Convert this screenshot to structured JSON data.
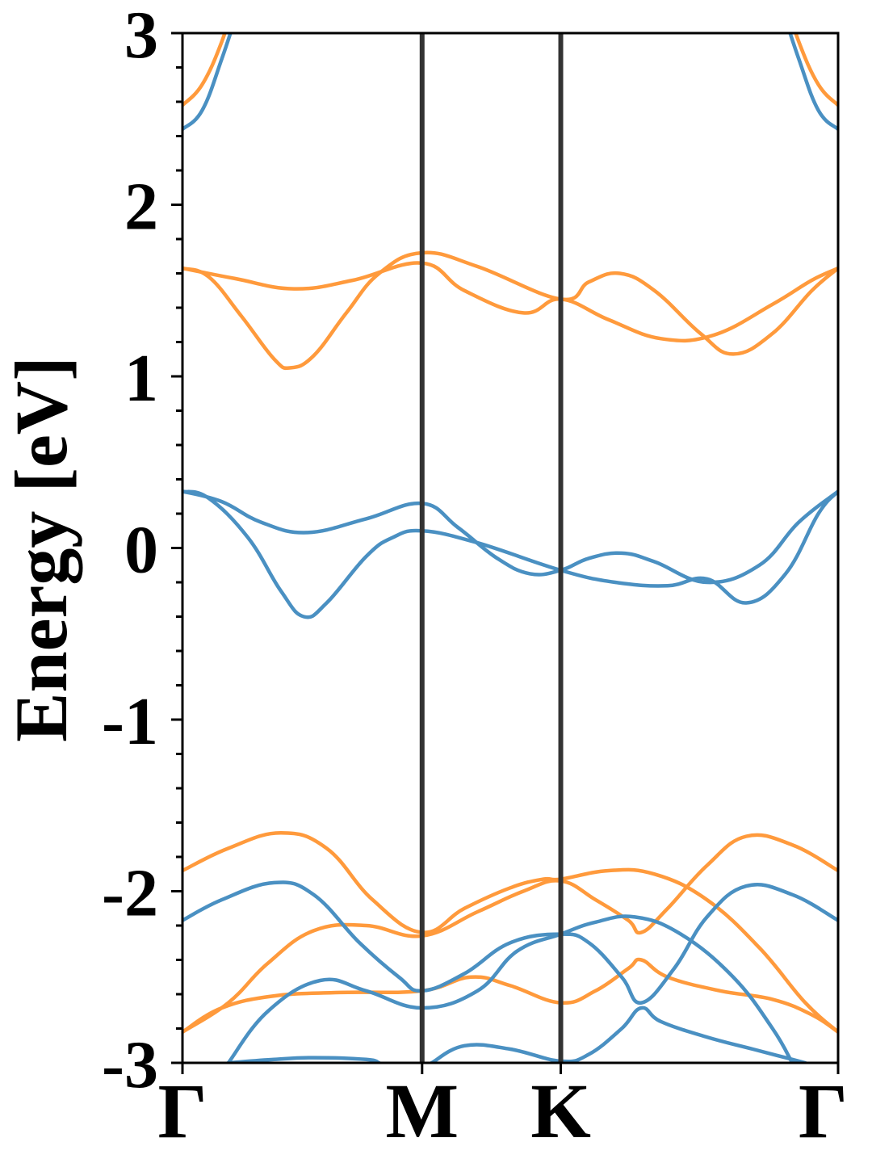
{
  "chart_data": {
    "type": "line",
    "title": "",
    "xlabel": "",
    "ylabel": "Energy [eV]",
    "ylim": [
      -3,
      3
    ],
    "xlim": [
      0,
      1
    ],
    "yticks": [
      -3,
      -2,
      -1,
      0,
      1,
      2,
      3
    ],
    "ytick_labels": [
      "-3",
      "-2",
      "-1",
      "0",
      "1",
      "2",
      "3"
    ],
    "high_symmetry_points": [
      {
        "label": "Γ",
        "x": 0.0
      },
      {
        "label": "M",
        "x": 0.3655
      },
      {
        "label": "K",
        "x": 0.577
      },
      {
        "label": "Γ",
        "x": 1.0
      }
    ],
    "grid": false,
    "legend": "none",
    "colors": {
      "spin_a": "#4a90c2",
      "spin_b": "#ff9a3c",
      "symmetry_line": "#333333"
    },
    "series": [
      {
        "color": "spin_b",
        "values": [
          [
            0,
            1.63
          ],
          [
            0.04,
            1.58
          ],
          [
            0.09,
            1.35
          ],
          [
            0.14,
            1.1
          ],
          [
            0.165,
            1.05
          ],
          [
            0.2,
            1.12
          ],
          [
            0.25,
            1.37
          ],
          [
            0.3,
            1.6
          ],
          [
            0.3655,
            1.72
          ],
          [
            0.45,
            1.64
          ],
          [
            0.577,
            1.45
          ],
          [
            0.62,
            1.55
          ],
          [
            0.667,
            1.6
          ],
          [
            0.72,
            1.5
          ],
          [
            0.79,
            1.25
          ],
          [
            0.84,
            1.13
          ],
          [
            0.9,
            1.25
          ],
          [
            0.96,
            1.5
          ],
          [
            1.0,
            1.63
          ]
        ]
      },
      {
        "color": "spin_b",
        "values": [
          [
            0,
            1.63
          ],
          [
            0.08,
            1.57
          ],
          [
            0.17,
            1.51
          ],
          [
            0.26,
            1.56
          ],
          [
            0.3655,
            1.66
          ],
          [
            0.43,
            1.5
          ],
          [
            0.52,
            1.37
          ],
          [
            0.577,
            1.45
          ],
          [
            0.65,
            1.33
          ],
          [
            0.73,
            1.22
          ],
          [
            0.81,
            1.24
          ],
          [
            0.9,
            1.42
          ],
          [
            0.96,
            1.56
          ],
          [
            1.0,
            1.63
          ]
        ]
      },
      {
        "color": "spin_a",
        "values": [
          [
            0,
            0.33
          ],
          [
            0.04,
            0.29
          ],
          [
            0.1,
            0.06
          ],
          [
            0.15,
            -0.25
          ],
          [
            0.185,
            -0.4
          ],
          [
            0.22,
            -0.32
          ],
          [
            0.28,
            -0.05
          ],
          [
            0.32,
            0.06
          ],
          [
            0.3655,
            0.1
          ],
          [
            0.45,
            0.03
          ],
          [
            0.577,
            -0.13
          ],
          [
            0.66,
            -0.2
          ],
          [
            0.74,
            -0.22
          ],
          [
            0.8,
            -0.18
          ],
          [
            0.86,
            -0.32
          ],
          [
            0.92,
            -0.15
          ],
          [
            0.97,
            0.2
          ],
          [
            1.0,
            0.33
          ]
        ]
      },
      {
        "color": "spin_a",
        "values": [
          [
            0,
            0.33
          ],
          [
            0.06,
            0.27
          ],
          [
            0.12,
            0.15
          ],
          [
            0.19,
            0.09
          ],
          [
            0.28,
            0.17
          ],
          [
            0.3655,
            0.26
          ],
          [
            0.42,
            0.12
          ],
          [
            0.48,
            -0.06
          ],
          [
            0.53,
            -0.15
          ],
          [
            0.577,
            -0.13
          ],
          [
            0.62,
            -0.06
          ],
          [
            0.67,
            -0.03
          ],
          [
            0.72,
            -0.08
          ],
          [
            0.8,
            -0.2
          ],
          [
            0.88,
            -0.1
          ],
          [
            0.94,
            0.15
          ],
          [
            1.0,
            0.33
          ]
        ]
      },
      {
        "color": "spin_b",
        "values": [
          [
            0,
            2.58
          ],
          [
            0.03,
            2.7
          ],
          [
            0.06,
            2.95
          ],
          [
            0.08,
            3.2
          ]
        ]
      },
      {
        "color": "spin_a",
        "values": [
          [
            0,
            2.44
          ],
          [
            0.03,
            2.55
          ],
          [
            0.06,
            2.85
          ],
          [
            0.09,
            3.2
          ]
        ]
      },
      {
        "color": "spin_b",
        "values": [
          [
            1.0,
            2.58
          ],
          [
            0.97,
            2.7
          ],
          [
            0.94,
            2.95
          ],
          [
            0.92,
            3.2
          ]
        ]
      },
      {
        "color": "spin_a",
        "values": [
          [
            1.0,
            2.44
          ],
          [
            0.97,
            2.55
          ],
          [
            0.94,
            2.85
          ],
          [
            0.91,
            3.2
          ]
        ]
      },
      {
        "color": "spin_b",
        "values": [
          [
            0,
            -1.88
          ],
          [
            0.07,
            -1.75
          ],
          [
            0.15,
            -1.66
          ],
          [
            0.22,
            -1.75
          ],
          [
            0.29,
            -2.05
          ],
          [
            0.3655,
            -2.24
          ],
          [
            0.43,
            -2.1
          ],
          [
            0.5,
            -1.98
          ],
          [
            0.55,
            -1.93
          ],
          [
            0.577,
            -1.93
          ],
          [
            0.65,
            -1.88
          ],
          [
            0.72,
            -1.9
          ],
          [
            0.8,
            -2.05
          ],
          [
            0.88,
            -2.33
          ],
          [
            0.95,
            -2.65
          ],
          [
            1.0,
            -2.82
          ]
        ]
      },
      {
        "color": "spin_b",
        "values": [
          [
            0,
            -2.82
          ],
          [
            0.07,
            -2.65
          ],
          [
            0.13,
            -2.42
          ],
          [
            0.2,
            -2.23
          ],
          [
            0.28,
            -2.2
          ],
          [
            0.3655,
            -2.26
          ],
          [
            0.45,
            -2.12
          ],
          [
            0.52,
            -2.0
          ],
          [
            0.577,
            -1.94
          ],
          [
            0.63,
            -2.05
          ],
          [
            0.68,
            -2.17
          ],
          [
            0.7,
            -2.24
          ],
          [
            0.74,
            -2.1
          ],
          [
            0.8,
            -1.85
          ],
          [
            0.86,
            -1.68
          ],
          [
            0.93,
            -1.73
          ],
          [
            1.0,
            -1.88
          ]
        ]
      },
      {
        "color": "spin_b",
        "values": [
          [
            0,
            -2.82
          ],
          [
            0.06,
            -2.68
          ],
          [
            0.14,
            -2.61
          ],
          [
            0.24,
            -2.59
          ],
          [
            0.3655,
            -2.58
          ],
          [
            0.44,
            -2.5
          ],
          [
            0.5,
            -2.55
          ],
          [
            0.577,
            -2.65
          ],
          [
            0.63,
            -2.58
          ],
          [
            0.68,
            -2.45
          ],
          [
            0.7,
            -2.4
          ],
          [
            0.74,
            -2.5
          ],
          [
            0.82,
            -2.58
          ],
          [
            0.9,
            -2.63
          ],
          [
            0.96,
            -2.72
          ],
          [
            1.0,
            -2.82
          ]
        ]
      },
      {
        "color": "spin_a",
        "values": [
          [
            0,
            -2.17
          ],
          [
            0.06,
            -2.05
          ],
          [
            0.14,
            -1.95
          ],
          [
            0.2,
            -2.02
          ],
          [
            0.27,
            -2.3
          ],
          [
            0.33,
            -2.5
          ],
          [
            0.3655,
            -2.58
          ],
          [
            0.43,
            -2.48
          ],
          [
            0.5,
            -2.3
          ],
          [
            0.577,
            -2.25
          ],
          [
            0.62,
            -2.3
          ],
          [
            0.67,
            -2.5
          ],
          [
            0.7,
            -2.65
          ],
          [
            0.75,
            -2.45
          ],
          [
            0.8,
            -2.15
          ],
          [
            0.86,
            -1.97
          ],
          [
            0.93,
            -2.02
          ],
          [
            1.0,
            -2.17
          ]
        ]
      },
      {
        "color": "spin_a",
        "values": [
          [
            0.07,
            -3.0
          ],
          [
            0.13,
            -2.7
          ],
          [
            0.21,
            -2.52
          ],
          [
            0.28,
            -2.58
          ],
          [
            0.3655,
            -2.68
          ],
          [
            0.45,
            -2.58
          ],
          [
            0.51,
            -2.35
          ],
          [
            0.577,
            -2.25
          ],
          [
            0.63,
            -2.18
          ],
          [
            0.69,
            -2.15
          ],
          [
            0.76,
            -2.25
          ],
          [
            0.84,
            -2.5
          ],
          [
            0.9,
            -2.8
          ],
          [
            0.93,
            -3.0
          ]
        ]
      },
      {
        "color": "spin_a",
        "values": [
          [
            0.07,
            -3.0
          ],
          [
            0.14,
            -2.98
          ],
          [
            0.2,
            -2.97
          ],
          [
            0.28,
            -2.98
          ],
          [
            0.3,
            -3.0
          ]
        ]
      },
      {
        "color": "spin_a",
        "values": [
          [
            0.38,
            -3.0
          ],
          [
            0.43,
            -2.9
          ],
          [
            0.5,
            -2.92
          ],
          [
            0.577,
            -2.99
          ],
          [
            0.62,
            -2.95
          ],
          [
            0.67,
            -2.8
          ],
          [
            0.7,
            -2.68
          ],
          [
            0.73,
            -2.76
          ],
          [
            0.8,
            -2.85
          ],
          [
            0.87,
            -2.92
          ],
          [
            0.92,
            -2.97
          ],
          [
            0.95,
            -3.0
          ]
        ]
      }
    ]
  }
}
